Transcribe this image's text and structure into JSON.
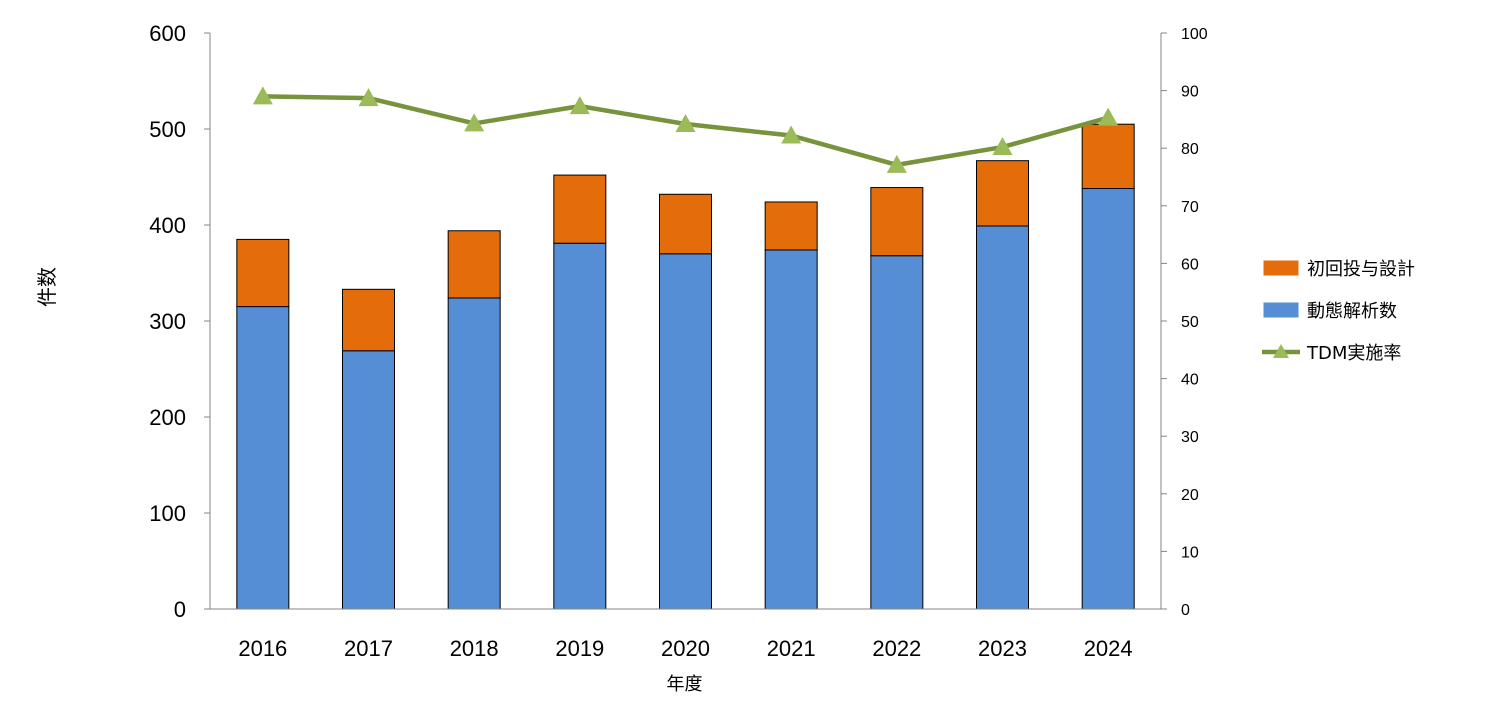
{
  "chart_data": {
    "type": "bar",
    "stacked": true,
    "categories": [
      "2016",
      "2017",
      "2018",
      "2019",
      "2020",
      "2021",
      "2022",
      "2023",
      "2024"
    ],
    "series": [
      {
        "name": "動態解析数",
        "type": "bar",
        "axis": "left",
        "color": "#558ed5",
        "values": [
          315,
          269,
          324,
          381,
          370,
          374,
          368,
          399,
          438
        ]
      },
      {
        "name": "初回投与設計",
        "type": "bar",
        "axis": "left",
        "color": "#e46c0a",
        "values": [
          70,
          64,
          70,
          71,
          62,
          50,
          71,
          68,
          67
        ]
      },
      {
        "name": "TDM実施率",
        "type": "line",
        "axis": "right",
        "color": "#77933c",
        "marker": "triangle",
        "marker_color": "#9bbb59",
        "values": [
          89,
          88.7,
          84.3,
          87.3,
          84.2,
          82.2,
          77.1,
          80.2,
          85.3
        ]
      }
    ],
    "left_axis": {
      "label": "件数",
      "min": 0,
      "max": 600,
      "ticks": [
        0,
        100,
        200,
        300,
        400,
        500,
        600
      ]
    },
    "right_axis": {
      "label": "",
      "min": 0,
      "max": 100,
      "ticks": [
        0,
        10,
        20,
        30,
        40,
        50,
        60,
        70,
        80,
        90,
        100
      ]
    },
    "xlabel": "年度",
    "legend": {
      "position": "right",
      "order": [
        "初回投与設計",
        "動態解析数",
        "TDM実施率"
      ]
    },
    "grid": false
  }
}
